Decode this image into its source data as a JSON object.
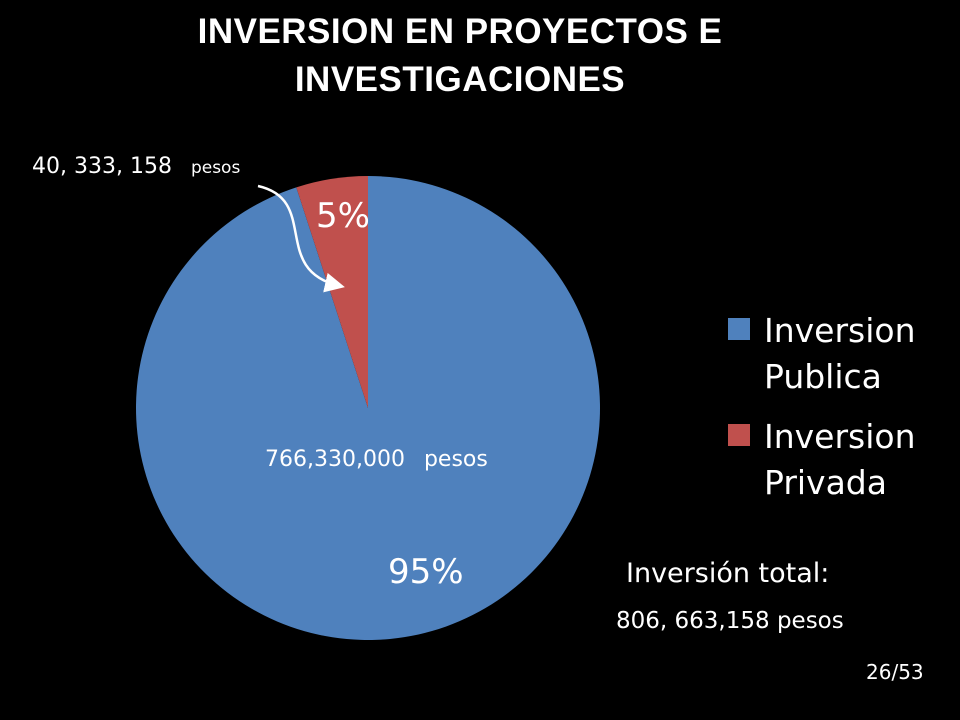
{
  "title_lines": [
    "INVERSION EN PROYECTOS E",
    "INVESTIGACIONES"
  ],
  "colors": {
    "background": "#000000",
    "publica": "#4F81BD",
    "privada": "#C0504D",
    "text": "#FFFFFF"
  },
  "chart_data": {
    "type": "pie",
    "title": "INVERSION EN PROYECTOS E INVESTIGACIONES",
    "unit": "pesos",
    "slices": [
      {
        "name": "Inversion Publica",
        "value": 766330000,
        "percent_label": "95%",
        "value_label": "766,330,000",
        "unit_label": "pesos",
        "color": "#4F81BD"
      },
      {
        "name": "Inversion Privada",
        "value": 40333158,
        "percent_label": "5%",
        "value_label": "40, 333, 158",
        "unit_label": "pesos",
        "color": "#C0504D"
      }
    ],
    "legend": {
      "position": "right",
      "entries": [
        "Inversion Publica",
        "Inversion Privada"
      ]
    }
  },
  "total": {
    "label": "Inversión total:",
    "value": "806, 663,158 pesos"
  },
  "page": "26/53"
}
